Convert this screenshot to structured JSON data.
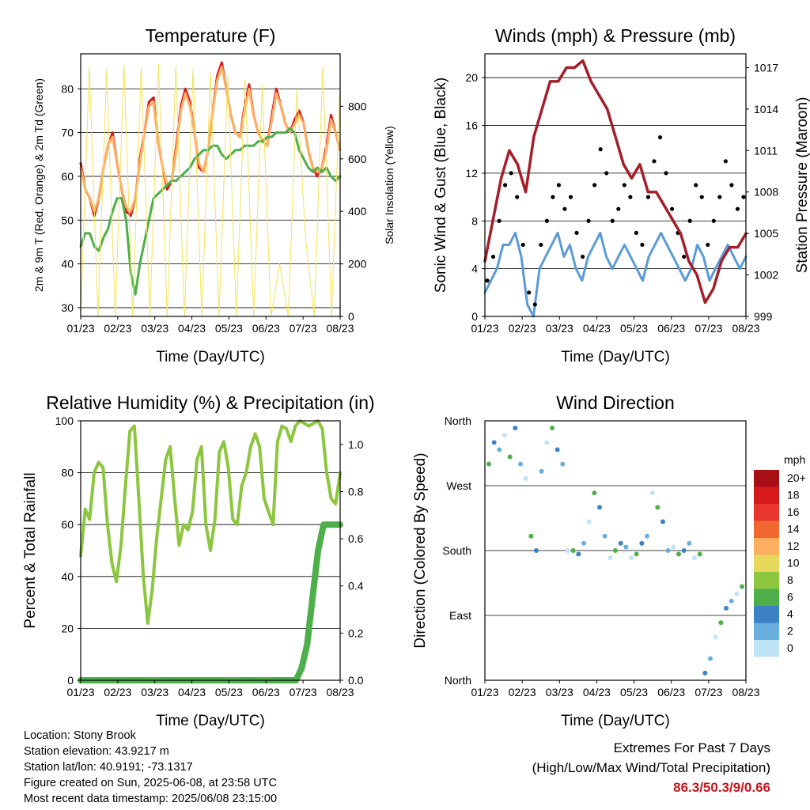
{
  "chart_data": [
    {
      "type": "line",
      "title": "Temperature (F)",
      "xlabel": "Time (Day/UTC)",
      "ylabel_left": "2m & 9m T (Red, Orange) & 2m Td (Green)",
      "ylabel_right": "Solar Insolation (Yellow)",
      "x_ticks": [
        "01/23",
        "02/23",
        "03/23",
        "04/23",
        "05/23",
        "06/23",
        "07/23",
        "08/23"
      ],
      "ylim_left": [
        28,
        88
      ],
      "yticks_left": [
        30,
        40,
        50,
        60,
        70,
        80
      ],
      "ylim_right": [
        0,
        1000
      ],
      "yticks_right": [
        0,
        200,
        400,
        600,
        800
      ],
      "grid": true,
      "series": [
        {
          "name": "2m T",
          "color": "#d7191c",
          "axis": "left",
          "values": [
            63,
            57,
            55,
            51,
            55,
            62,
            67,
            70,
            63,
            57,
            52,
            51,
            55,
            64,
            70,
            77,
            78,
            68,
            62,
            57,
            59,
            67,
            76,
            80,
            77,
            70,
            62,
            61,
            66,
            75,
            83,
            86,
            80,
            74,
            70,
            69,
            76,
            81,
            74,
            70,
            68,
            67,
            74,
            80,
            76,
            72,
            70,
            73,
            75,
            72,
            66,
            62,
            60,
            62,
            67,
            74,
            70,
            66
          ]
        },
        {
          "name": "9m T",
          "color": "#fdae61",
          "axis": "left",
          "values": [
            62,
            57,
            55,
            52,
            55,
            62,
            67,
            69,
            63,
            57,
            53,
            52,
            55,
            63,
            70,
            76,
            77,
            68,
            62,
            58,
            59,
            66,
            75,
            79,
            76,
            70,
            63,
            61,
            66,
            75,
            82,
            85,
            80,
            74,
            70,
            69,
            75,
            80,
            74,
            70,
            68,
            67,
            73,
            79,
            76,
            72,
            70,
            72,
            74,
            72,
            66,
            62,
            61,
            62,
            66,
            73,
            70,
            66
          ]
        },
        {
          "name": "2m Td",
          "color": "#4daf4a",
          "axis": "left",
          "values": [
            44,
            47,
            47,
            44,
            43,
            46,
            48,
            52,
            55,
            55,
            50,
            38,
            33,
            40,
            45,
            50,
            55,
            56,
            57,
            58,
            59,
            59,
            60,
            61,
            62,
            64,
            65,
            66,
            66,
            67,
            67,
            65,
            64,
            65,
            66,
            66,
            67,
            67,
            67,
            68,
            68,
            69,
            69,
            70,
            70,
            70,
            71,
            70,
            66,
            64,
            62,
            61,
            62,
            61,
            62,
            60,
            59,
            60
          ]
        },
        {
          "name": "Solar Insolation",
          "color": "#f2e35c",
          "axis": "right",
          "values": [
            0,
            950,
            0,
            940,
            0,
            960,
            0,
            950,
            0,
            960,
            0,
            950,
            0,
            940,
            0,
            930,
            0,
            920,
            0,
            900,
            0,
            880,
            0,
            200,
            0,
            860,
            300,
            0,
            950,
            0,
            900
          ]
        }
      ]
    },
    {
      "type": "line",
      "title": "Winds (mph) & Pressure (mb)",
      "xlabel": "Time (Day/UTC)",
      "ylabel_left": "Sonic Wind & Gust (Blue, Black)",
      "ylabel_right": "Station Pressure (Maroon)",
      "x_ticks": [
        "01/23",
        "02/23",
        "03/23",
        "04/23",
        "05/23",
        "06/23",
        "07/23",
        "08/23"
      ],
      "ylim_left": [
        0,
        22
      ],
      "yticks_left": [
        0,
        4,
        8,
        12,
        16,
        20
      ],
      "ylim_right": [
        999,
        1018
      ],
      "yticks_right": [
        999,
        1002,
        1005,
        1008,
        1011,
        1014,
        1017
      ],
      "grid": true,
      "series": [
        {
          "name": "Sonic Wind",
          "color": "#5b9bd5",
          "axis": "left",
          "values": [
            2,
            3,
            4,
            6,
            6,
            7,
            5,
            1,
            0,
            4,
            5,
            6,
            7,
            5,
            6,
            4,
            3,
            5,
            6,
            7,
            5,
            4,
            5,
            6,
            5,
            4,
            3,
            5,
            6,
            7,
            6,
            5,
            4,
            3,
            4,
            6,
            5,
            3,
            4,
            5,
            6,
            5,
            4,
            5
          ]
        },
        {
          "name": "Gust",
          "color": "#000000",
          "axis": "left",
          "values": [
            3,
            5,
            8,
            11,
            12,
            10,
            6,
            2,
            1,
            6,
            8,
            10,
            11,
            9,
            10,
            7,
            5,
            8,
            11,
            14,
            12,
            8,
            9,
            11,
            10,
            7,
            6,
            10,
            13,
            15,
            12,
            9,
            7,
            5,
            8,
            11,
            10,
            6,
            8,
            10,
            13,
            11,
            9,
            10
          ]
        },
        {
          "name": "Station Pressure",
          "color": "#a31f2a",
          "axis": "right",
          "values": [
            1003,
            1006,
            1009,
            1011,
            1010,
            1008,
            1012,
            1014,
            1016,
            1016,
            1017,
            1017,
            1017.5,
            1016,
            1015,
            1014,
            1012,
            1010,
            1009,
            1010,
            1008,
            1008,
            1007,
            1006,
            1005,
            1003,
            1002,
            1000,
            1001,
            1003,
            1004,
            1004,
            1005
          ]
        }
      ]
    },
    {
      "type": "line",
      "title": "Relative Humidity (%) & Precipitation (in)",
      "xlabel": "Time (Day/UTC)",
      "ylabel_left": "Percent & Total Rainfall",
      "x_ticks": [
        "01/23",
        "02/23",
        "03/23",
        "04/23",
        "05/23",
        "06/23",
        "07/23",
        "08/23"
      ],
      "ylim_left": [
        0,
        100
      ],
      "yticks_left": [
        0,
        20,
        40,
        60,
        80,
        100
      ],
      "ylim_right": [
        0,
        1.1
      ],
      "yticks_right": [
        "0.0",
        "0.2",
        "0.4",
        "0.6",
        "0.8",
        "1.0"
      ],
      "grid": true,
      "series": [
        {
          "name": "Relative Humidity",
          "color": "#8cc63f",
          "axis": "left",
          "values": [
            48,
            66,
            62,
            80,
            84,
            82,
            60,
            45,
            38,
            52,
            75,
            96,
            98,
            70,
            40,
            22,
            35,
            55,
            70,
            85,
            90,
            70,
            52,
            60,
            58,
            65,
            85,
            90,
            60,
            50,
            62,
            88,
            92,
            82,
            62,
            60,
            75,
            80,
            90,
            95,
            90,
            70,
            65,
            60,
            92,
            98,
            97,
            92,
            98,
            100,
            99,
            98,
            99,
            100,
            97,
            80,
            70,
            68,
            80
          ]
        },
        {
          "name": "Total Precipitation",
          "color": "#4daf4a",
          "axis": "right",
          "values": [
            0,
            0,
            0,
            0,
            0,
            0,
            0,
            0,
            0,
            0,
            0,
            0,
            0,
            0.05,
            0.15,
            0.35,
            0.55,
            0.66,
            0.66,
            0.66,
            0.66
          ]
        }
      ]
    },
    {
      "type": "scatter",
      "title": "Wind Direction",
      "xlabel": "Time (Day/UTC)",
      "ylabel": "Direction (Colored By Speed)",
      "x_ticks": [
        "01/23",
        "02/23",
        "03/23",
        "04/23",
        "05/23",
        "06/23",
        "07/23",
        "08/23"
      ],
      "y_ticks": [
        "North",
        "East",
        "South",
        "West",
        "North"
      ],
      "ylim": [
        0,
        360
      ],
      "grid": true,
      "legend_title": "mph",
      "legend_labels": [
        "20+",
        "18",
        "16",
        "14",
        "12",
        "10",
        "8",
        "6",
        "4",
        "2",
        "0"
      ],
      "legend_colors": [
        "#a50f15",
        "#d7191c",
        "#e8352e",
        "#f0682f",
        "#fdae61",
        "#e6d85a",
        "#8cc63f",
        "#4daf4a",
        "#3b82c4",
        "#6aaee0",
        "#bfe3f7"
      ],
      "series": [
        {
          "name": "Wind Direction",
          "values": [
            300,
            330,
            320,
            340,
            310,
            350,
            300,
            280,
            200,
            180,
            290,
            330,
            350,
            320,
            300,
            180,
            180,
            175,
            190,
            220,
            260,
            240,
            200,
            170,
            180,
            190,
            185,
            170,
            175,
            190,
            200,
            260,
            240,
            220,
            180,
            185,
            175,
            180,
            190,
            170,
            175,
            10,
            30,
            60,
            80,
            100,
            110,
            120,
            130
          ]
        }
      ]
    }
  ],
  "info": {
    "location": "Location: Stony Brook",
    "elevation": "Station elevation: 43.9217 m",
    "latlon": "Station lat/lon: 40.9191; -73.1317",
    "created": "Figure created on Sun, 2025-06-08, at 23:58 UTC",
    "recent": "Most recent data timestamp: 2025/06/08 23:15:00"
  },
  "extremes": {
    "title": "Extremes For Past 7 Days",
    "subtitle": "(High/Low/Max Wind/Total Precipitation)",
    "values": "86.3/50.3/9/0.66",
    "value_color": "#c8161e"
  }
}
